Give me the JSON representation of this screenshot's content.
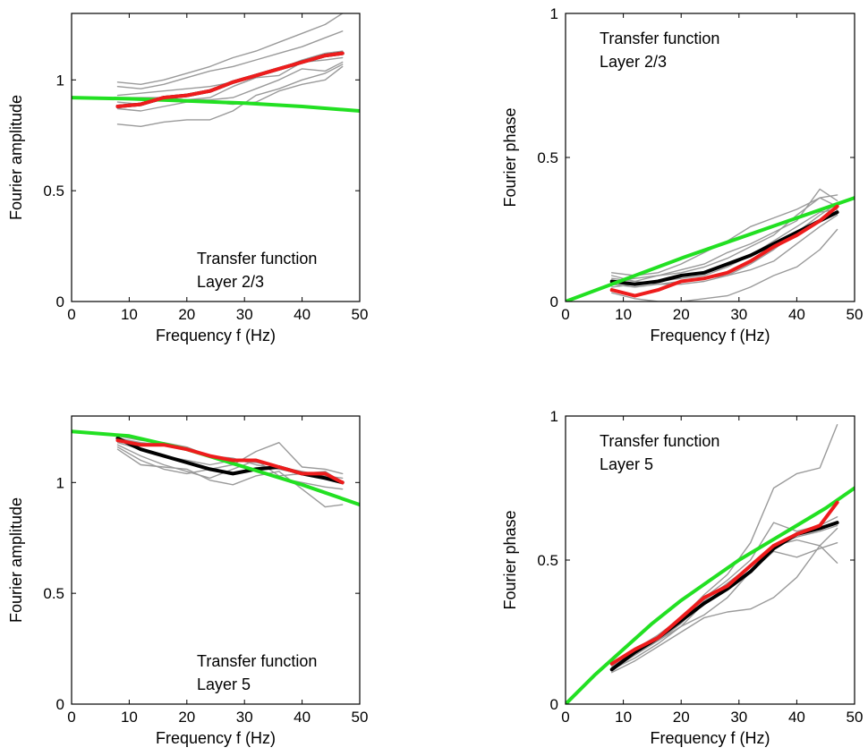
{
  "colors": {
    "individual": "#9a9a9a",
    "mean": "#000000",
    "fit": "#ee1c1c",
    "model": "#22e022"
  },
  "chart_data": [
    {
      "id": "amp-l23",
      "type": "line",
      "annotation": [
        "Transfer function",
        "Layer 2/3"
      ],
      "annotation_position": "bottom-right",
      "xlabel": "Frequency f (Hz)",
      "ylabel": "Fourier amplitude",
      "xlim": [
        0,
        50
      ],
      "ylim": [
        0,
        1.3
      ],
      "xticks": [
        0,
        10,
        20,
        30,
        40,
        50
      ],
      "yticks": [
        0,
        0.5,
        1
      ],
      "ytick_labels": [
        "0",
        "0.5",
        "1"
      ],
      "grid": false,
      "individual_x": [
        8,
        12,
        16,
        20,
        24,
        28,
        32,
        36,
        40,
        44,
        47
      ],
      "individual": [
        [
          0.99,
          0.98,
          1.0,
          1.03,
          1.06,
          1.1,
          1.13,
          1.17,
          1.21,
          1.25,
          1.3
        ],
        [
          0.97,
          0.96,
          0.98,
          1.01,
          1.04,
          1.06,
          1.09,
          1.12,
          1.15,
          1.19,
          1.22
        ],
        [
          0.93,
          0.94,
          0.95,
          0.96,
          0.97,
          0.99,
          1.02,
          1.05,
          1.09,
          1.12,
          1.13
        ],
        [
          0.92,
          0.92,
          0.92,
          0.91,
          0.92,
          0.97,
          1.01,
          1.02,
          1.08,
          1.09,
          1.1
        ],
        [
          0.9,
          0.89,
          0.91,
          0.91,
          0.91,
          0.92,
          0.96,
          1.0,
          1.05,
          1.04,
          1.08
        ],
        [
          0.87,
          0.86,
          0.88,
          0.9,
          0.9,
          0.89,
          0.9,
          0.95,
          0.98,
          1.0,
          1.06
        ],
        [
          0.8,
          0.79,
          0.81,
          0.82,
          0.82,
          0.86,
          0.93,
          0.96,
          1.0,
          1.03,
          1.07
        ]
      ],
      "mean_x": [
        8,
        12,
        16,
        20,
        24,
        28,
        32,
        36,
        40,
        44,
        47
      ],
      "mean": [
        0.88,
        0.89,
        0.92,
        0.93,
        0.95,
        0.99,
        1.02,
        1.05,
        1.08,
        1.11,
        1.12
      ],
      "fit_x": [
        8,
        12,
        16,
        20,
        24,
        28,
        32,
        36,
        40,
        44,
        47
      ],
      "fit": [
        0.88,
        0.89,
        0.92,
        0.93,
        0.95,
        0.99,
        1.02,
        1.05,
        1.08,
        1.11,
        1.12
      ],
      "model_x": [
        0,
        10,
        20,
        30,
        40,
        50
      ],
      "model": [
        0.92,
        0.915,
        0.905,
        0.895,
        0.88,
        0.86
      ]
    },
    {
      "id": "phase-l23",
      "type": "line",
      "annotation": [
        "Transfer function",
        "Layer 2/3"
      ],
      "annotation_position": "top-left",
      "xlabel": "Frequency f (Hz)",
      "ylabel": "Fourier phase",
      "xlim": [
        0,
        50
      ],
      "ylim": [
        0,
        1
      ],
      "xticks": [
        0,
        10,
        20,
        30,
        40,
        50
      ],
      "yticks": [
        0,
        0.5,
        1
      ],
      "ytick_labels": [
        "0",
        "0.5",
        "1"
      ],
      "grid": false,
      "individual_x": [
        8,
        12,
        16,
        20,
        24,
        28,
        32,
        36,
        40,
        44,
        47
      ],
      "individual": [
        [
          0.1,
          0.09,
          0.1,
          0.13,
          0.17,
          0.21,
          0.26,
          0.29,
          0.32,
          0.36,
          0.37
        ],
        [
          0.08,
          0.07,
          0.09,
          0.11,
          0.13,
          0.17,
          0.2,
          0.24,
          0.28,
          0.39,
          0.35
        ],
        [
          0.07,
          0.08,
          0.09,
          0.1,
          0.12,
          0.15,
          0.19,
          0.23,
          0.3,
          0.36,
          0.33
        ],
        [
          0.05,
          0.06,
          0.07,
          0.08,
          0.09,
          0.12,
          0.16,
          0.21,
          0.26,
          0.31,
          0.32
        ],
        [
          0.09,
          0.07,
          0.06,
          0.06,
          0.07,
          0.09,
          0.13,
          0.18,
          0.24,
          0.3,
          0.34
        ],
        [
          0.06,
          0.05,
          0.06,
          0.07,
          0.08,
          0.09,
          0.11,
          0.14,
          0.2,
          0.26,
          0.3
        ],
        [
          0.03,
          0.01,
          0.0,
          0.0,
          0.01,
          0.02,
          0.05,
          0.09,
          0.12,
          0.18,
          0.25
        ]
      ],
      "mean_x": [
        8,
        12,
        16,
        20,
        24,
        28,
        32,
        36,
        40,
        44,
        47
      ],
      "mean": [
        0.07,
        0.06,
        0.07,
        0.09,
        0.1,
        0.13,
        0.16,
        0.2,
        0.24,
        0.28,
        0.31
      ],
      "fit_x": [
        8,
        12,
        16,
        20,
        24,
        28,
        32,
        36,
        40,
        44,
        47
      ],
      "fit": [
        0.04,
        0.02,
        0.04,
        0.07,
        0.08,
        0.1,
        0.14,
        0.19,
        0.23,
        0.28,
        0.33
      ],
      "model_x": [
        0,
        10,
        20,
        30,
        40,
        50
      ],
      "model": [
        0.0,
        0.075,
        0.15,
        0.22,
        0.29,
        0.36
      ]
    },
    {
      "id": "amp-l5",
      "type": "line",
      "annotation": [
        "Transfer function",
        "Layer 5"
      ],
      "annotation_position": "bottom-right",
      "xlabel": "Frequency f (Hz)",
      "ylabel": "Fourier amplitude",
      "xlim": [
        0,
        50
      ],
      "ylim": [
        0,
        1.3
      ],
      "xticks": [
        0,
        10,
        20,
        30,
        40,
        50
      ],
      "yticks": [
        0,
        0.5,
        1
      ],
      "ytick_labels": [
        "0",
        "0.5",
        "1"
      ],
      "grid": false,
      "individual_x": [
        8,
        12,
        16,
        20,
        24,
        28,
        32,
        36,
        40,
        44,
        47
      ],
      "individual": [
        [
          1.2,
          1.18,
          1.17,
          1.15,
          1.12,
          1.08,
          1.14,
          1.18,
          1.07,
          1.06,
          1.04
        ],
        [
          1.18,
          1.15,
          1.12,
          1.1,
          1.08,
          1.1,
          1.09,
          1.07,
          1.05,
          1.03,
          1.02
        ],
        [
          1.17,
          1.12,
          1.08,
          1.05,
          1.02,
          1.06,
          1.1,
          1.03,
          1.04,
          1.05,
          1.0
        ],
        [
          1.16,
          1.1,
          1.06,
          1.04,
          1.06,
          1.08,
          1.05,
          1.02,
          1.0,
          0.98,
          0.97
        ],
        [
          1.15,
          1.08,
          1.07,
          1.06,
          1.01,
          0.99,
          1.03,
          1.05,
          0.97,
          0.89,
          0.9
        ],
        [
          1.21,
          1.19,
          1.18,
          1.16,
          1.12,
          1.11,
          1.08,
          1.06,
          1.04,
          1.02,
          1.0
        ]
      ],
      "mean_x": [
        8,
        12,
        16,
        20,
        24,
        28,
        32,
        36,
        40,
        44,
        47
      ],
      "mean": [
        1.2,
        1.15,
        1.12,
        1.09,
        1.06,
        1.04,
        1.06,
        1.07,
        1.04,
        1.02,
        1.0
      ],
      "fit_x": [
        8,
        12,
        16,
        20,
        24,
        28,
        32,
        36,
        40,
        44,
        47
      ],
      "fit": [
        1.19,
        1.17,
        1.17,
        1.15,
        1.12,
        1.1,
        1.1,
        1.07,
        1.04,
        1.04,
        1.0
      ],
      "model_x": [
        0,
        10,
        20,
        30,
        40,
        50
      ],
      "model": [
        1.23,
        1.21,
        1.15,
        1.07,
        0.99,
        0.9
      ]
    },
    {
      "id": "phase-l5",
      "type": "line",
      "annotation": [
        "Transfer function",
        "Layer 5"
      ],
      "annotation_position": "top-left",
      "xlabel": "Frequency f (Hz)",
      "ylabel": "Fourier phase",
      "xlim": [
        0,
        50
      ],
      "ylim": [
        0,
        1
      ],
      "xticks": [
        0,
        10,
        20,
        30,
        40,
        50
      ],
      "yticks": [
        0,
        0.5,
        1
      ],
      "ytick_labels": [
        "0",
        "0.5",
        "1"
      ],
      "grid": false,
      "individual_x": [
        8,
        12,
        16,
        20,
        24,
        28,
        32,
        36,
        40,
        44,
        47
      ],
      "individual": [
        [
          0.14,
          0.19,
          0.24,
          0.3,
          0.38,
          0.45,
          0.56,
          0.75,
          0.8,
          0.82,
          0.97
        ],
        [
          0.13,
          0.18,
          0.23,
          0.29,
          0.37,
          0.43,
          0.5,
          0.63,
          0.6,
          0.62,
          0.65
        ],
        [
          0.12,
          0.17,
          0.22,
          0.28,
          0.36,
          0.42,
          0.48,
          0.55,
          0.57,
          0.55,
          0.49
        ],
        [
          0.12,
          0.16,
          0.21,
          0.27,
          0.35,
          0.4,
          0.46,
          0.53,
          0.51,
          0.54,
          0.56
        ],
        [
          0.11,
          0.15,
          0.2,
          0.25,
          0.3,
          0.32,
          0.33,
          0.37,
          0.44,
          0.55,
          0.61
        ],
        [
          0.13,
          0.18,
          0.22,
          0.27,
          0.31,
          0.37,
          0.46,
          0.55,
          0.58,
          0.6,
          0.62
        ]
      ],
      "mean_x": [
        8,
        12,
        16,
        20,
        24,
        28,
        32,
        36,
        40,
        44,
        47
      ],
      "mean": [
        0.12,
        0.18,
        0.23,
        0.29,
        0.35,
        0.4,
        0.46,
        0.54,
        0.59,
        0.61,
        0.63
      ],
      "fit_x": [
        8,
        12,
        16,
        20,
        24,
        28,
        32,
        36,
        40,
        44,
        47
      ],
      "fit": [
        0.14,
        0.19,
        0.23,
        0.3,
        0.37,
        0.41,
        0.48,
        0.55,
        0.59,
        0.62,
        0.7
      ],
      "model_x": [
        0,
        5,
        10,
        15,
        20,
        25,
        30,
        35,
        40,
        45,
        50
      ],
      "model": [
        0.0,
        0.1,
        0.19,
        0.28,
        0.36,
        0.43,
        0.5,
        0.56,
        0.62,
        0.68,
        0.75
      ]
    }
  ]
}
